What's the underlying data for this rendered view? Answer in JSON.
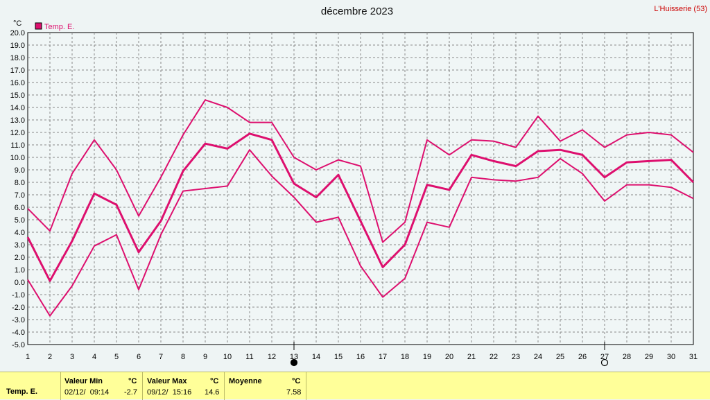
{
  "chart_data": {
    "type": "line",
    "title": "décembre 2023",
    "station": "L'Huisserie (53)",
    "ylabel": "°C",
    "legend": "Temp. E.",
    "legend_position": "top-left",
    "grid": true,
    "ylim": [
      -5,
      20
    ],
    "yticks": [
      "-5.0",
      "-4.0",
      "-3.0",
      "-2.0",
      "-1.0",
      "0.0",
      "1.0",
      "2.0",
      "3.0",
      "4.0",
      "5.0",
      "6.0",
      "7.0",
      "8.0",
      "9.0",
      "10.0",
      "11.0",
      "12.0",
      "13.0",
      "14.0",
      "15.0",
      "16.0",
      "17.0",
      "18.0",
      "19.0",
      "20.0"
    ],
    "x": [
      1,
      2,
      3,
      4,
      5,
      6,
      7,
      8,
      9,
      10,
      11,
      12,
      13,
      14,
      15,
      16,
      17,
      18,
      19,
      20,
      21,
      22,
      23,
      24,
      25,
      26,
      27,
      28,
      29,
      30,
      31
    ],
    "series": [
      {
        "role": "max",
        "values": [
          5.9,
          4.1,
          8.7,
          11.4,
          9.0,
          5.3,
          8.4,
          11.8,
          14.6,
          14.0,
          12.8,
          12.8,
          10.0,
          9.0,
          9.8,
          9.3,
          3.2,
          4.8,
          11.4,
          10.2,
          11.4,
          11.3,
          10.8,
          13.3,
          11.3,
          12.2,
          10.8,
          11.8,
          12.0,
          11.8,
          10.4
        ]
      },
      {
        "role": "mean",
        "values": [
          3.6,
          0.1,
          3.3,
          7.1,
          6.2,
          2.4,
          4.9,
          8.9,
          11.1,
          10.7,
          11.9,
          11.4,
          7.9,
          6.8,
          8.6,
          4.9,
          1.2,
          3.0,
          7.8,
          7.4,
          10.2,
          9.7,
          9.3,
          10.5,
          10.6,
          10.2,
          8.4,
          9.6,
          9.7,
          9.8,
          8.0
        ]
      },
      {
        "role": "min",
        "values": [
          0.2,
          -2.7,
          -0.3,
          2.9,
          3.8,
          -0.6,
          3.8,
          7.3,
          7.5,
          7.7,
          10.6,
          8.5,
          6.8,
          4.8,
          5.2,
          1.3,
          -1.2,
          0.3,
          4.8,
          4.4,
          8.4,
          8.2,
          8.1,
          8.4,
          9.9,
          8.7,
          6.5,
          7.8,
          7.8,
          7.6,
          6.7
        ]
      }
    ],
    "color": "#dd0f6e",
    "markers": [
      {
        "day": 13,
        "symbol": "new-moon"
      },
      {
        "day": 27,
        "symbol": "full-moon"
      }
    ]
  },
  "summary": {
    "series_label": "Temp. E.",
    "min_label": "Valeur Min",
    "min_unit": "°C",
    "min_date": "02/12/  09:14",
    "min_value": "-2.7",
    "max_label": "Valeur Max",
    "max_unit": "°C",
    "max_date": "09/12/  15:16",
    "max_value": "14.6",
    "mean_label": "Moyenne",
    "mean_unit": "°C",
    "mean_value": "7.58"
  },
  "colors": {
    "series": "#dd0f6e",
    "summary_bg": "#ffff99",
    "station": "#cc0000"
  }
}
